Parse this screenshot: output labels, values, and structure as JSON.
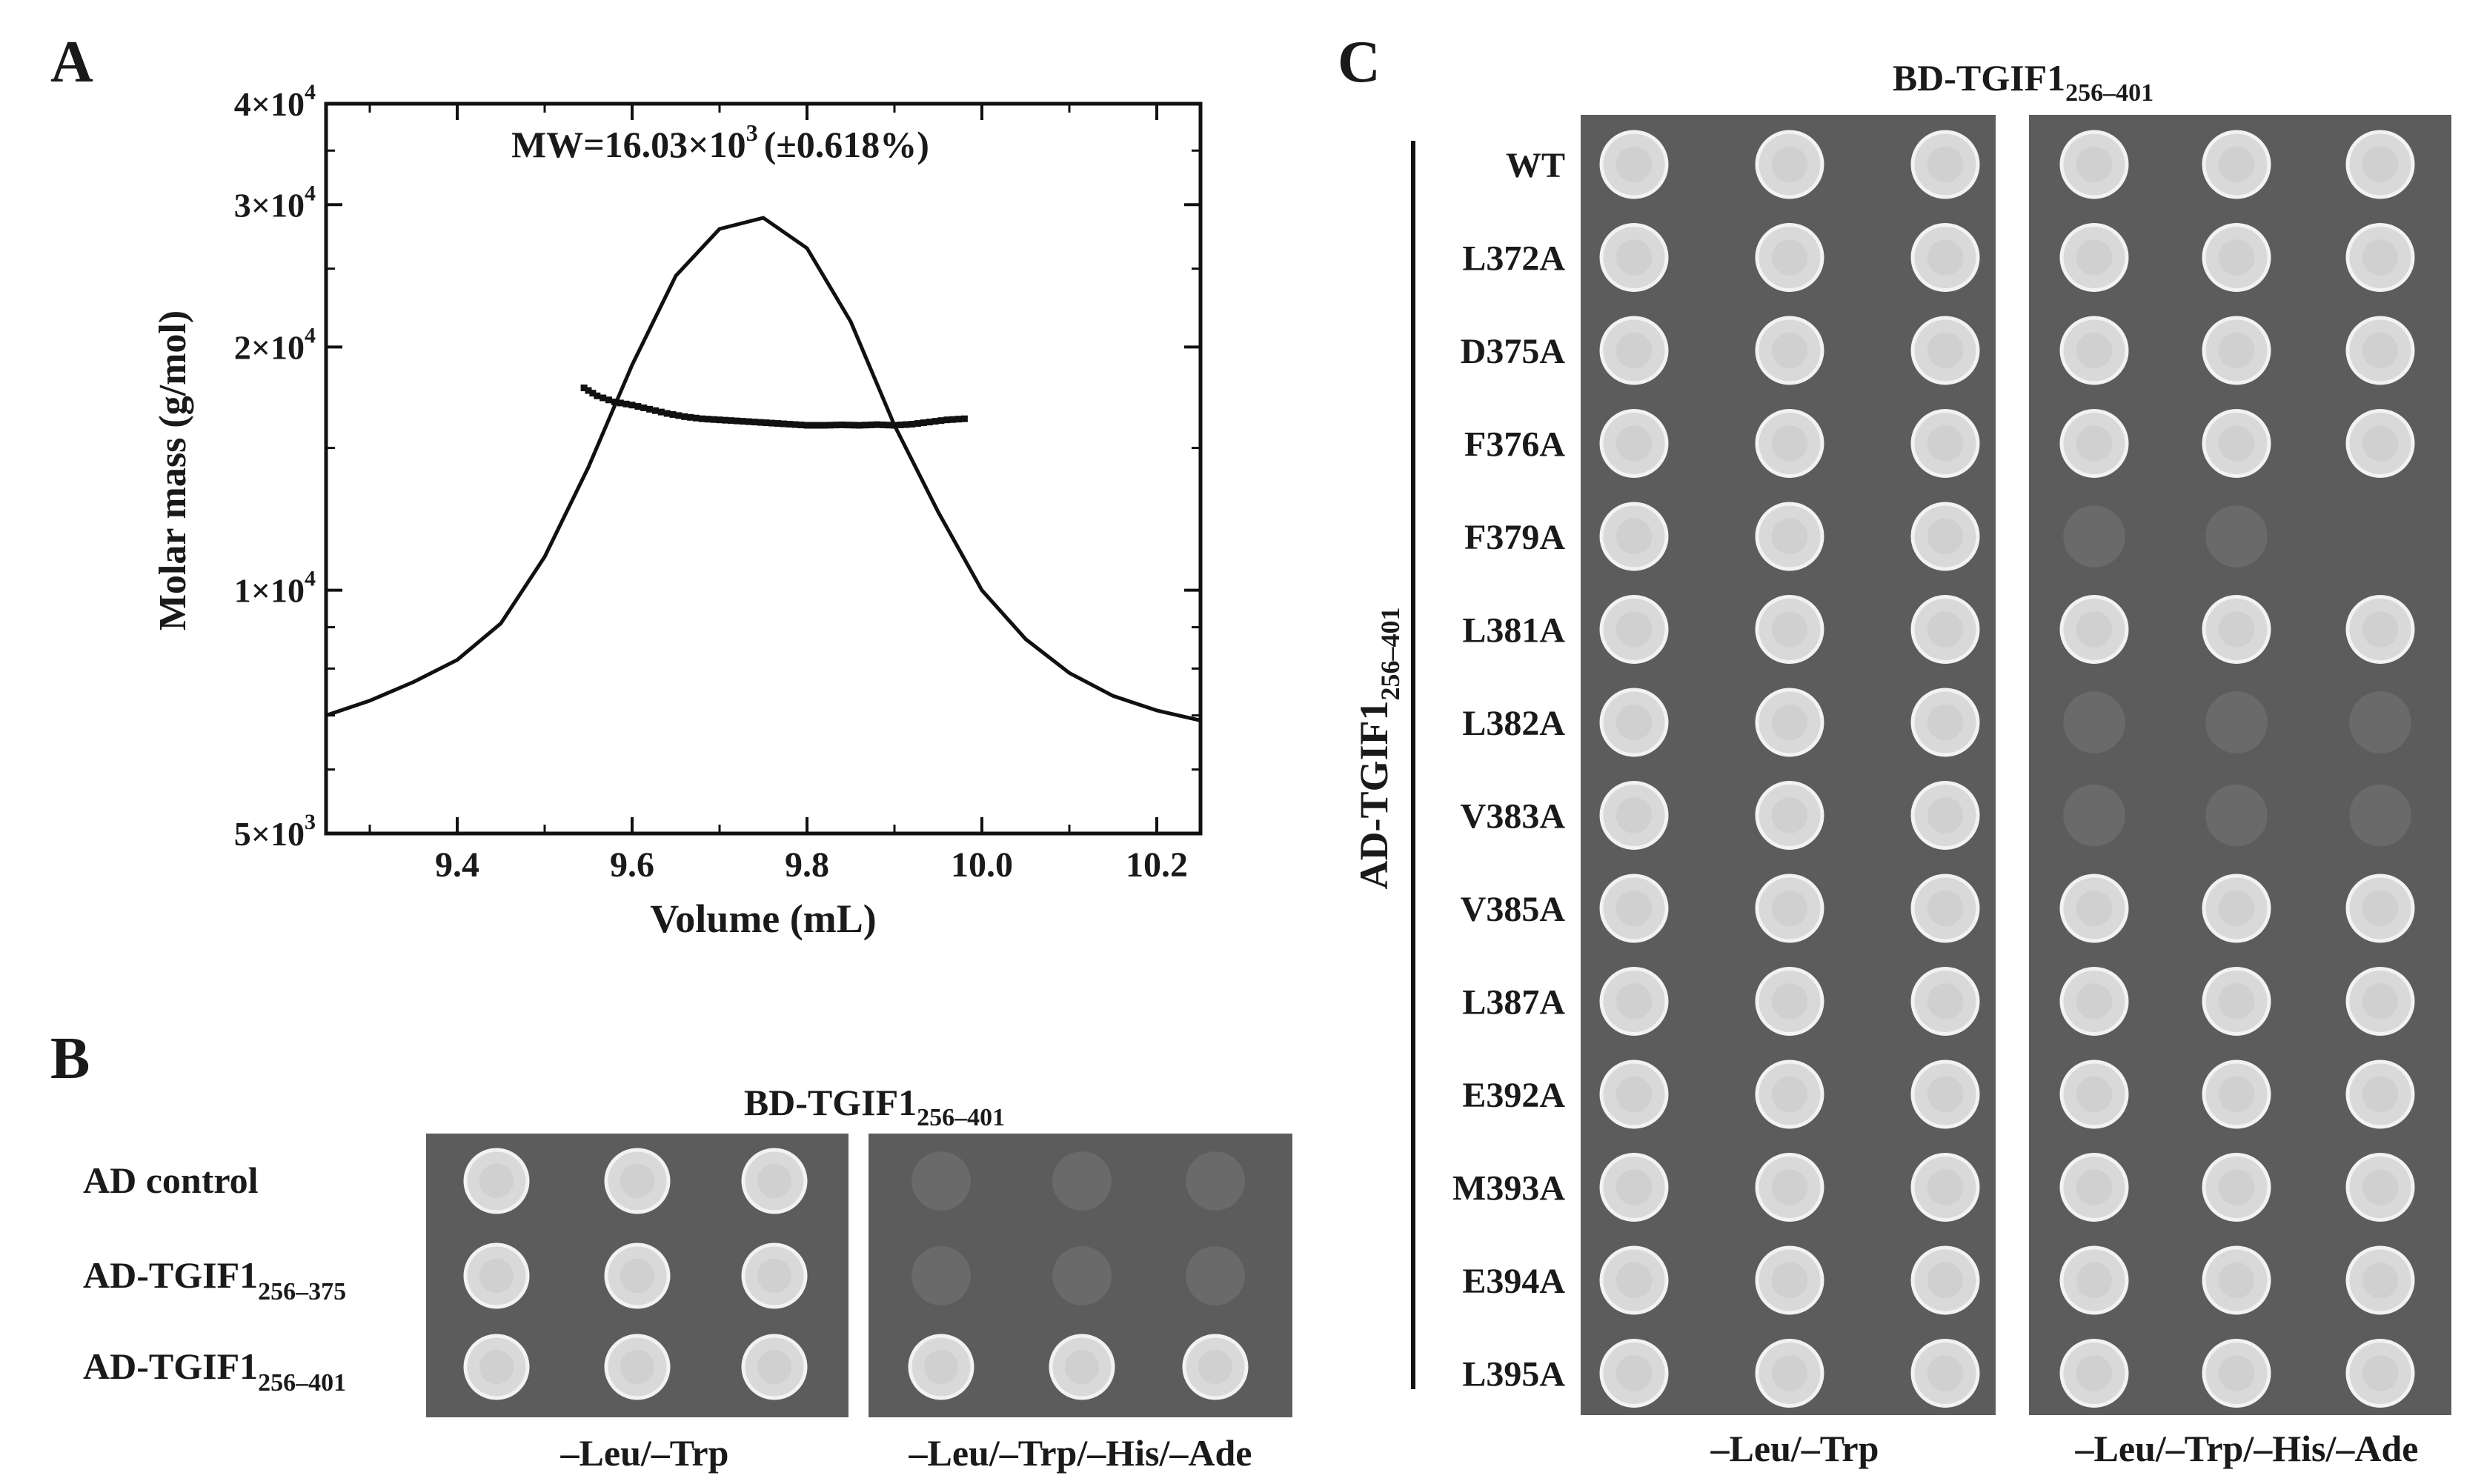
{
  "panels": {
    "A": {
      "letter": "A",
      "mw_base": "MW=16.03×10",
      "mw_exp": "3",
      "mw_err": "(±0.618%)",
      "xlabel": "Volume (mL)",
      "ylabel": "Molar mass (g/mol)"
    },
    "B": {
      "letter": "B",
      "header_base": "BD-TGIF1",
      "header_sub": "256–401",
      "row_labels": [
        {
          "base": "AD control",
          "sub": ""
        },
        {
          "base": "AD-TGIF1",
          "sub": "256–375"
        },
        {
          "base": "AD-TGIF1",
          "sub": "256–401"
        }
      ],
      "plate_labels": [
        "–Leu/–Trp",
        "–Leu/–Trp/–His/–Ade"
      ],
      "growth": {
        "leu_trp": [
          [
            1,
            1,
            1
          ],
          [
            1,
            1,
            1
          ],
          [
            1,
            1,
            1
          ]
        ],
        "his_ade": [
          [
            0.05,
            0.05,
            0.05
          ],
          [
            0.05,
            0.05,
            0.05
          ],
          [
            1,
            1,
            1
          ]
        ]
      }
    },
    "C": {
      "letter": "C",
      "header_base": "BD-TGIF1",
      "header_sub": "256–401",
      "side_base": "AD-TGIF1",
      "side_sub": "256–401",
      "mutants": [
        "WT",
        "L372A",
        "D375A",
        "F376A",
        "F379A",
        "L381A",
        "L382A",
        "V383A",
        "V385A",
        "L387A",
        "E392A",
        "M393A",
        "E394A",
        "L395A"
      ],
      "plate_labels": [
        "–Leu/–Trp",
        "–Leu/–Trp/–His/–Ade"
      ],
      "growth_his_ade": [
        [
          1,
          1,
          1
        ],
        [
          1,
          1,
          1
        ],
        [
          1,
          1,
          1
        ],
        [
          1,
          1,
          1
        ],
        [
          0.05,
          0.05,
          0
        ],
        [
          1,
          1,
          1
        ],
        [
          0.1,
          0.1,
          0.1
        ],
        [
          0.1,
          0.1,
          0.1
        ],
        [
          1,
          1,
          1
        ],
        [
          1,
          1,
          1
        ],
        [
          1,
          1,
          1
        ],
        [
          1,
          1,
          1
        ],
        [
          1,
          1,
          1
        ],
        [
          1,
          1,
          1
        ]
      ]
    }
  },
  "chart_data": {
    "type": "line",
    "xlim": [
      9.25,
      10.25
    ],
    "ylim": [
      5000,
      40000
    ],
    "yscale": "log",
    "x_ticks": [
      9.4,
      9.6,
      9.8,
      10.0,
      10.2
    ],
    "x_tick_labels": [
      "9.4",
      "9.6",
      "9.8",
      "10.0",
      "10.2"
    ],
    "y_ticks": [
      5000,
      10000,
      20000,
      30000,
      40000
    ],
    "y_tick_labels": [
      {
        "mant": "5×10",
        "exp": "3"
      },
      {
        "mant": "1×10",
        "exp": "4"
      },
      {
        "mant": "2×10",
        "exp": "4"
      },
      {
        "mant": "3×10",
        "exp": "4"
      },
      {
        "mant": "4×10",
        "exp": "4"
      }
    ],
    "series": [
      {
        "name": "elution peak (relative signal)",
        "style": "solid",
        "x": [
          9.25,
          9.3,
          9.35,
          9.4,
          9.45,
          9.5,
          9.55,
          9.6,
          9.65,
          9.7,
          9.75,
          9.8,
          9.85,
          9.9,
          9.95,
          10.0,
          10.05,
          10.1,
          10.15,
          10.2,
          10.25
        ],
        "y": [
          7000,
          7300,
          7700,
          8200,
          9100,
          11000,
          14200,
          19000,
          24500,
          28000,
          28900,
          26500,
          21500,
          16000,
          12500,
          10000,
          8700,
          7900,
          7400,
          7100,
          6900
        ]
      },
      {
        "name": "molar mass",
        "style": "dotted",
        "x": [
          9.545,
          9.56,
          9.58,
          9.6,
          9.62,
          9.64,
          9.66,
          9.68,
          9.7,
          9.72,
          9.74,
          9.76,
          9.78,
          9.8,
          9.82,
          9.84,
          9.86,
          9.88,
          9.9,
          9.92,
          9.94,
          9.96,
          9.98
        ],
        "y": [
          17800,
          17400,
          17100,
          16950,
          16750,
          16550,
          16400,
          16300,
          16250,
          16200,
          16150,
          16100,
          16050,
          16000,
          16000,
          16020,
          16000,
          16030,
          16000,
          16050,
          16150,
          16250,
          16300
        ]
      }
    ]
  }
}
